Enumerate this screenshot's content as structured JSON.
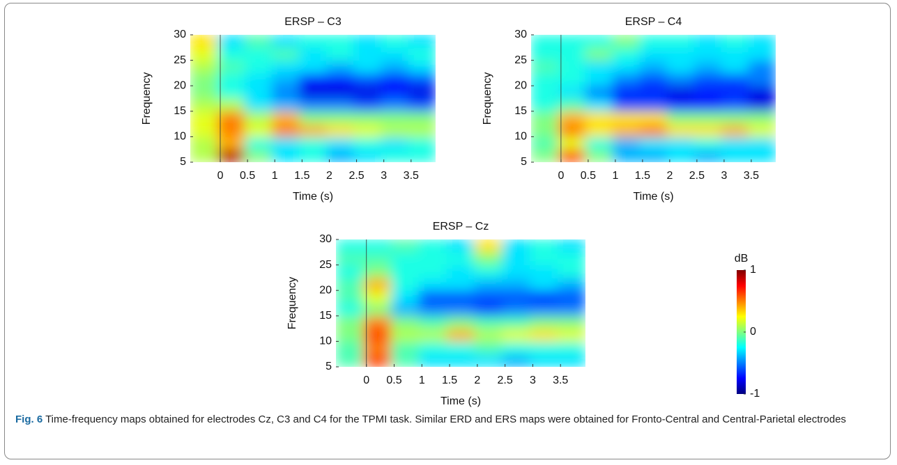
{
  "chart_data": [
    {
      "type": "heatmap",
      "title": "ERSP – C3",
      "xlabel": "Time (s)",
      "ylabel": "Frequency",
      "colormap": "jet",
      "clim": [
        -1,
        1
      ],
      "vline": 0,
      "xlim": [
        -0.55,
        3.95
      ],
      "xticks": [
        0,
        0.5,
        1,
        1.5,
        2,
        2.5,
        3,
        3.5
      ],
      "ylim": [
        5,
        30
      ],
      "yticks": [
        5,
        10,
        15,
        20,
        25,
        30
      ],
      "x": [
        -0.3,
        0.2,
        0.7,
        1.2,
        1.7,
        2.2,
        2.7,
        3.2,
        3.7
      ],
      "y": [
        6.25,
        8.75,
        11.25,
        13.75,
        16.25,
        18.75,
        21.25,
        23.75,
        26.25,
        28.75
      ],
      "z": [
        [
          0.1,
          0.9,
          0.0,
          -0.3,
          -0.2,
          -0.4,
          -0.3,
          -0.2,
          -0.2
        ],
        [
          0.1,
          0.4,
          -0.2,
          -0.3,
          -0.2,
          -0.3,
          -0.2,
          -0.3,
          -0.2
        ],
        [
          0.2,
          0.5,
          0.2,
          0.5,
          0.4,
          0.3,
          0.2,
          0.1,
          0.1
        ],
        [
          0.2,
          0.5,
          0.1,
          0.4,
          0.0,
          0.0,
          0.0,
          0.0,
          0.0
        ],
        [
          0.1,
          0.1,
          -0.3,
          -0.4,
          -0.5,
          -0.5,
          -0.6,
          -0.5,
          -0.6
        ],
        [
          0.0,
          -0.2,
          -0.3,
          -0.5,
          -0.8,
          -0.8,
          -0.8,
          -0.7,
          -0.8
        ],
        [
          0.0,
          -0.2,
          -0.3,
          -0.4,
          -0.7,
          -0.7,
          -0.6,
          -0.7,
          -0.6
        ],
        [
          0.1,
          -0.1,
          -0.2,
          -0.3,
          -0.3,
          -0.4,
          -0.3,
          -0.4,
          -0.3
        ],
        [
          0.2,
          -0.2,
          -0.2,
          -0.1,
          -0.3,
          -0.2,
          -0.3,
          -0.3,
          -0.2
        ],
        [
          0.3,
          -0.3,
          -0.1,
          -0.3,
          -0.2,
          -0.2,
          -0.3,
          -0.2,
          -0.3
        ]
      ]
    },
    {
      "type": "heatmap",
      "title": "ERSP – C4",
      "xlabel": "Time (s)",
      "ylabel": "Frequency",
      "colormap": "jet",
      "clim": [
        -1,
        1
      ],
      "vline": 0,
      "xlim": [
        -0.55,
        3.95
      ],
      "xticks": [
        0,
        0.5,
        1,
        1.5,
        2,
        2.5,
        3,
        3.5
      ],
      "ylim": [
        5,
        30
      ],
      "yticks": [
        5,
        10,
        15,
        20,
        25,
        30
      ],
      "x": [
        -0.3,
        0.2,
        0.7,
        1.2,
        1.7,
        2.2,
        2.7,
        3.2,
        3.7
      ],
      "y": [
        6.25,
        8.75,
        11.25,
        13.75,
        16.25,
        18.75,
        21.25,
        23.75,
        26.25,
        28.75
      ],
      "z": [
        [
          0.0,
          0.6,
          0.0,
          -0.4,
          -0.4,
          -0.3,
          -0.4,
          -0.3,
          -0.3
        ],
        [
          -0.1,
          0.2,
          -0.2,
          -0.4,
          -0.3,
          -0.3,
          -0.2,
          -0.3,
          -0.3
        ],
        [
          0.0,
          0.5,
          0.3,
          0.4,
          0.5,
          0.3,
          0.3,
          0.4,
          0.2
        ],
        [
          0.0,
          0.4,
          0.3,
          0.3,
          0.3,
          0.0,
          0.0,
          0.0,
          0.0
        ],
        [
          -0.2,
          -0.1,
          -0.3,
          -0.6,
          -0.6,
          -0.7,
          -0.7,
          -0.6,
          -0.8
        ],
        [
          -0.2,
          -0.3,
          -0.5,
          -0.7,
          -0.7,
          -0.8,
          -0.7,
          -0.7,
          -0.8
        ],
        [
          -0.2,
          -0.2,
          -0.3,
          -0.5,
          -0.6,
          -0.5,
          -0.6,
          -0.6,
          -0.5
        ],
        [
          -0.1,
          -0.2,
          -0.3,
          -0.3,
          -0.4,
          -0.3,
          -0.4,
          -0.3,
          -0.5
        ],
        [
          -0.2,
          -0.2,
          0.0,
          -0.2,
          -0.3,
          -0.3,
          -0.3,
          -0.3,
          -0.3
        ],
        [
          -0.2,
          -0.2,
          -0.2,
          0.0,
          -0.2,
          -0.2,
          -0.3,
          -0.2,
          -0.3
        ]
      ]
    },
    {
      "type": "heatmap",
      "title": "ERSP – Cz",
      "xlabel": "Time (s)",
      "ylabel": "Frequency",
      "colormap": "jet",
      "clim": [
        -1,
        1
      ],
      "vline": 0,
      "xlim": [
        -0.55,
        3.95
      ],
      "xticks": [
        0,
        0.5,
        1,
        1.5,
        2,
        2.5,
        3,
        3.5
      ],
      "ylim": [
        5,
        30
      ],
      "yticks": [
        5,
        10,
        15,
        20,
        25,
        30
      ],
      "x": [
        -0.3,
        0.2,
        0.7,
        1.2,
        1.7,
        2.2,
        2.7,
        3.2,
        3.7
      ],
      "y": [
        6.25,
        8.75,
        11.25,
        13.75,
        16.25,
        18.75,
        21.25,
        23.75,
        26.25,
        28.75
      ],
      "z": [
        [
          -0.1,
          0.6,
          -0.1,
          -0.3,
          -0.3,
          -0.3,
          -0.4,
          -0.3,
          -0.3
        ],
        [
          -0.1,
          0.5,
          -0.1,
          -0.2,
          -0.2,
          -0.1,
          -0.2,
          -0.2,
          -0.2
        ],
        [
          0.0,
          0.6,
          0.1,
          0.1,
          0.4,
          0.1,
          0.2,
          0.3,
          0.2
        ],
        [
          0.0,
          0.5,
          0.0,
          -0.1,
          0.0,
          -0.1,
          -0.1,
          0.0,
          0.0
        ],
        [
          -0.2,
          0.0,
          -0.4,
          -0.5,
          -0.5,
          -0.6,
          -0.5,
          -0.5,
          -0.5
        ],
        [
          -0.1,
          0.2,
          -0.3,
          -0.6,
          -0.6,
          -0.6,
          -0.6,
          -0.7,
          -0.6
        ],
        [
          -0.1,
          0.4,
          -0.2,
          -0.3,
          -0.3,
          -0.4,
          -0.4,
          -0.3,
          -0.4
        ],
        [
          -0.2,
          0.0,
          -0.2,
          -0.2,
          -0.3,
          -0.2,
          -0.3,
          -0.3,
          -0.2
        ],
        [
          -0.1,
          -0.1,
          -0.2,
          -0.2,
          -0.2,
          0.0,
          -0.3,
          -0.2,
          -0.2
        ],
        [
          -0.2,
          -0.2,
          -0.1,
          -0.2,
          -0.3,
          0.3,
          -0.3,
          -0.2,
          -0.3
        ]
      ],
      "colorbar": {
        "label": "dB",
        "clim": [
          -1,
          1
        ],
        "ticks": [
          -1,
          0,
          1
        ]
      }
    }
  ],
  "caption": {
    "label": "Fig. 6",
    "text": "Time-frequency maps obtained for electrodes Cz, C3 and C4 for the TPMI task. Similar ERD and ERS maps were obtained for Fronto-Central and Central-Parietal electrodes"
  }
}
